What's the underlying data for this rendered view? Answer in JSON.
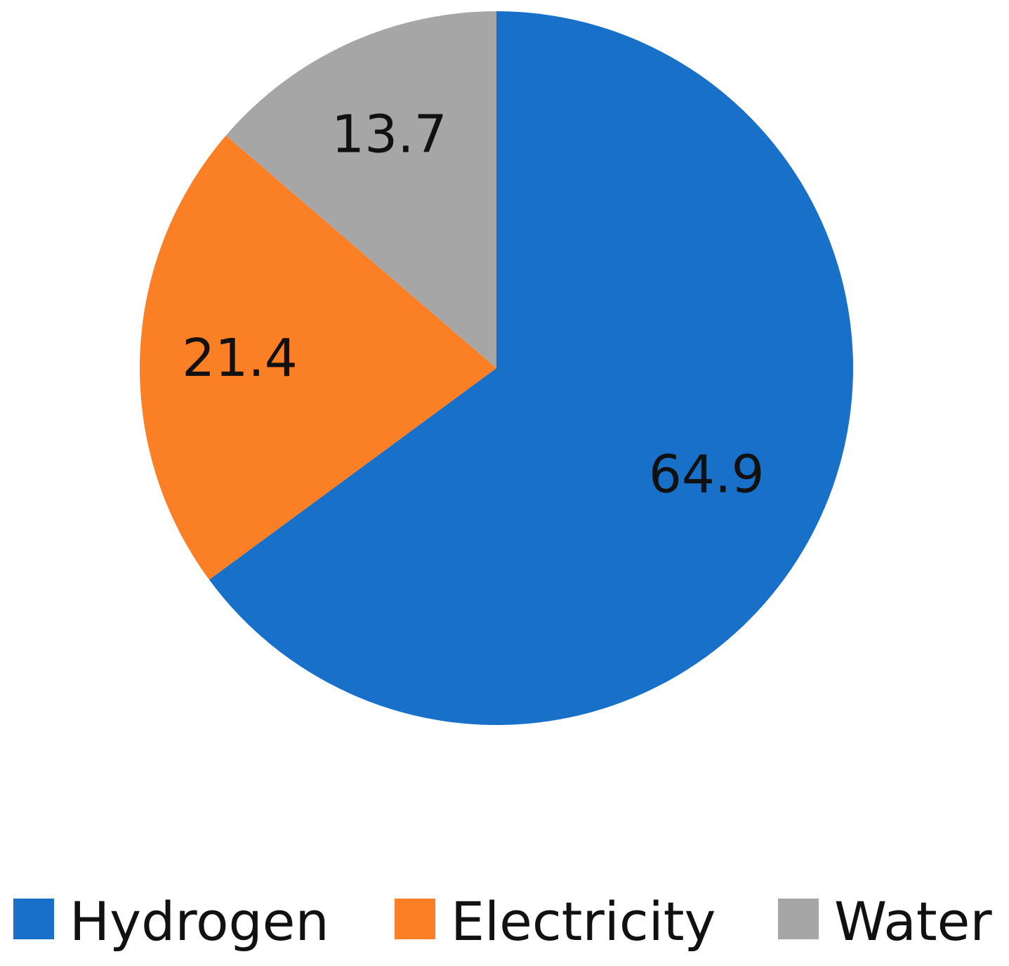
{
  "chart_data": {
    "type": "pie",
    "title": "",
    "start_angle_deg": 0,
    "direction": "clockwise",
    "legend_position": "bottom",
    "slices": [
      {
        "label": "Hydrogen",
        "value": 64.9,
        "display": "64.9",
        "color": "#1870C9"
      },
      {
        "label": "Electricity",
        "value": 21.4,
        "display": "21.4",
        "color": "#FB7F24"
      },
      {
        "label": "Water",
        "value": 13.7,
        "display": "13.7",
        "color": "#A6A6A6"
      }
    ]
  }
}
